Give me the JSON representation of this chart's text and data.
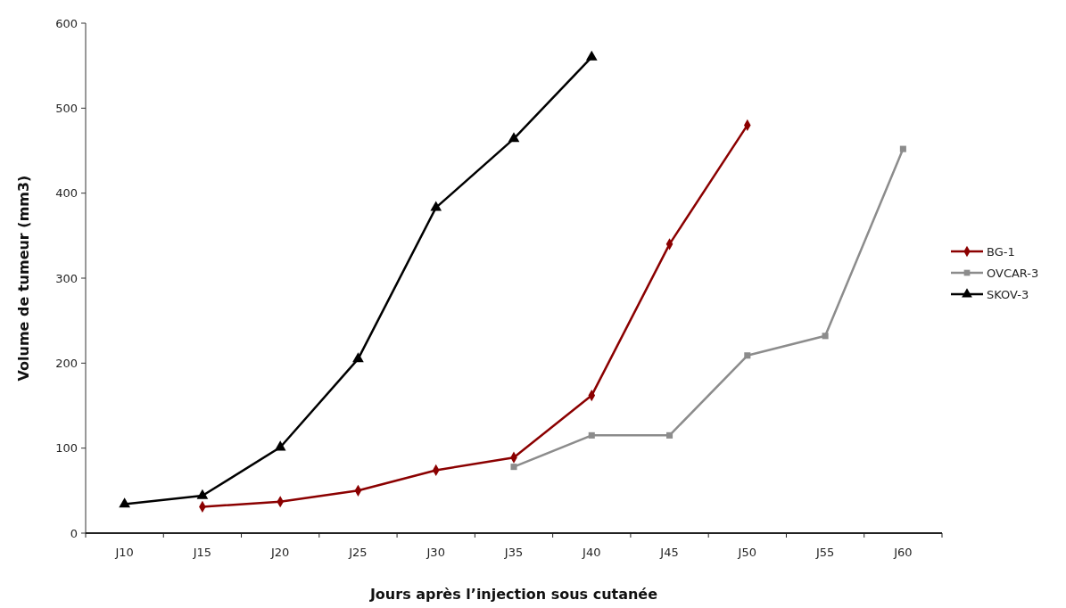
{
  "chart_data": {
    "type": "line",
    "xlabel": "Jours après l’injection sous cutanée",
    "ylabel": "Volume de tumeur (mm3)",
    "categories": [
      "J10",
      "J15",
      "J20",
      "J25",
      "J30",
      "J35",
      "J40",
      "J45",
      "J50",
      "J55",
      "J60"
    ],
    "series": [
      {
        "name": "BG-1",
        "color": "#8b0000",
        "marker": "diamond",
        "values": [
          null,
          31,
          37,
          50,
          74,
          89,
          162,
          340,
          480,
          null,
          null
        ]
      },
      {
        "name": "OVCAR-3",
        "color": "#8c8c8c",
        "marker": "square",
        "values": [
          null,
          null,
          null,
          null,
          null,
          78,
          115,
          115,
          209,
          232,
          452
        ]
      },
      {
        "name": "SKOV-3",
        "color": "#000000",
        "marker": "triangle",
        "values": [
          34,
          44,
          101,
          205,
          383,
          464,
          560,
          null,
          null,
          null,
          null
        ]
      }
    ],
    "ylim": [
      0,
      600
    ],
    "yticks": [
      0,
      100,
      200,
      300,
      400,
      500,
      600
    ],
    "grid": false,
    "legend": "right",
    "line_style": "solid"
  }
}
